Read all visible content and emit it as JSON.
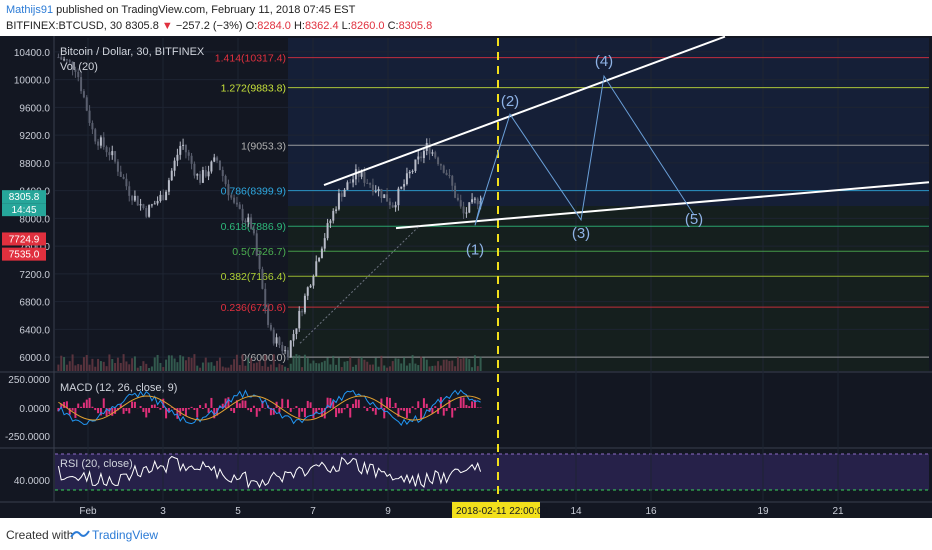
{
  "header": {
    "author": "Mathijs91",
    "published": "published on TradingView.com, February 11, 2018 07:45 EST",
    "symbol": "BITFINEX:BTCUSD, 30",
    "last": "8305.8",
    "arrow": "▼",
    "change": "−257.2 (−3%)",
    "o_label": "O:",
    "o": "8284.0",
    "h_label": "H:",
    "h": "8362.4",
    "l_label": "L:",
    "l": "8260.0",
    "c_label": "C:",
    "c": "8305.8"
  },
  "footer": {
    "created_with": "Created with",
    "brand": "TradingView"
  },
  "colors": {
    "bg": "#131722",
    "up": "#b8bcc8",
    "accent": "#2196f3",
    "dash": "#f2e01c",
    "red": "#e0303e"
  },
  "chart_data": [
    {
      "type": "candlestick",
      "title": "Bitcoin / Dollar, 30, BITFINEX",
      "volume_label": "Vol (20)",
      "ylim": [
        5800,
        10600
      ],
      "y_ticks": [
        "10400.0",
        "10000.0",
        "9600.0",
        "9200.0",
        "8800.0",
        "8400.0",
        "8000.0",
        "7600.0",
        "7200.0",
        "6800.0",
        "6400.0",
        "6000.0"
      ],
      "x_ticks": [
        "Feb",
        "3",
        "5",
        "7",
        "9",
        "14",
        "16",
        "19",
        "21"
      ],
      "cursor_date": "2018-02-11 22:00:00",
      "price_tags": [
        {
          "value": "8305.8",
          "color": "#26a69a"
        },
        {
          "value": "14:45",
          "color": "#26a69a"
        },
        {
          "value": "7724.9",
          "color": "#e0303e"
        },
        {
          "value": "7535.0",
          "color": "#e0303e"
        }
      ],
      "fib_levels": [
        {
          "label": "1.414(10317.4)",
          "value": 10317.4,
          "color": "#e0303e"
        },
        {
          "label": "1.272(9883.8)",
          "value": 9883.8,
          "color": "#c6e03a"
        },
        {
          "label": "1(9053.3)",
          "value": 9053.3,
          "color": "#b0b0b0"
        },
        {
          "label": "0.786(8399.9)",
          "value": 8399.9,
          "color": "#2ea8e0"
        },
        {
          "label": "0.618(7886.9)",
          "value": 7886.9,
          "color": "#2eb87a"
        },
        {
          "label": "0.5(7526.7)",
          "value": 7526.7,
          "color": "#4caf50"
        },
        {
          "label": "0.382(7166.4)",
          "value": 7166.4,
          "color": "#aed034"
        },
        {
          "label": "0.236(6720.6)",
          "value": 6720.6,
          "color": "#e0303e"
        },
        {
          "label": "0(6000.0)",
          "value": 6000.0,
          "color": "#b0b0b0"
        }
      ],
      "price_path": [
        [
          10200,
          10450
        ],
        [
          10050,
          10300
        ],
        [
          9100,
          9300
        ],
        [
          8850,
          9000
        ],
        [
          8300,
          8500
        ],
        [
          8050,
          8150
        ],
        [
          8300,
          8400
        ],
        [
          9050,
          9150
        ],
        [
          8500,
          8600
        ],
        [
          8800,
          8900
        ],
        [
          8100,
          8250
        ],
        [
          7800,
          7950
        ],
        [
          6300,
          6400
        ],
        [
          6000,
          6100
        ],
        [
          6800,
          6900
        ],
        [
          7600,
          7700
        ],
        [
          8300,
          8400
        ],
        [
          8600,
          8700
        ],
        [
          8400,
          8500
        ],
        [
          8150,
          8250
        ],
        [
          8600,
          8700
        ],
        [
          9000,
          9100
        ],
        [
          8650,
          8750
        ],
        [
          8000,
          8100
        ],
        [
          8280,
          8360
        ]
      ],
      "waves": [
        {
          "label": "(1)",
          "price": 7900
        },
        {
          "label": "(2)",
          "price": 9500
        },
        {
          "label": "(3)",
          "price": 7980
        },
        {
          "label": "(4)",
          "price": 10050
        },
        {
          "label": "(5)",
          "price": 8050
        }
      ]
    },
    {
      "type": "line",
      "title": "MACD (12, 26, close, 9)",
      "y_ticks": [
        "250.0000",
        "0.0000",
        "-250.0000"
      ]
    },
    {
      "type": "line",
      "title": "RSI (20, close)",
      "y_ticks": [
        "40.0000"
      ]
    }
  ]
}
